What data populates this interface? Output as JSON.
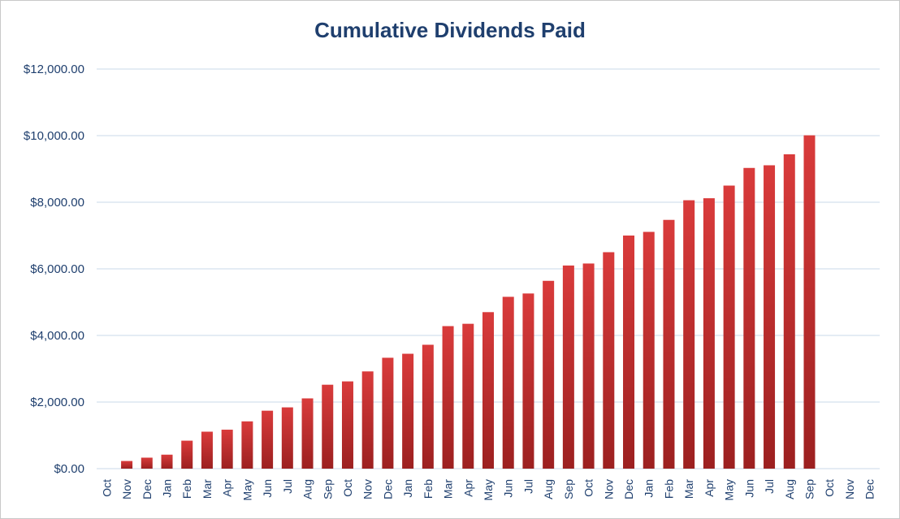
{
  "chart_data": {
    "type": "bar",
    "title": "Cumulative Dividends Paid",
    "xlabel": "",
    "ylabel": "",
    "ylim": [
      0,
      12000
    ],
    "yticks": [
      "$0.00",
      "$2,000.00",
      "$4,000.00",
      "$6,000.00",
      "$8,000.00",
      "$10,000.00",
      "$12,000.00"
    ],
    "grid": true,
    "legend": "none",
    "categories": [
      "Oct",
      "Nov",
      "Dec",
      "Jan",
      "Feb",
      "Mar",
      "Apr",
      "May",
      "Jun",
      "Jul",
      "Aug",
      "Sep",
      "Oct",
      "Nov",
      "Dec",
      "Jan",
      "Feb",
      "Mar",
      "Apr",
      "May",
      "Jun",
      "Jul",
      "Aug",
      "Sep",
      "Oct",
      "Nov",
      "Dec",
      "Jan",
      "Feb",
      "Mar",
      "Apr",
      "May",
      "Jun",
      "Jul",
      "Aug",
      "Sep",
      "Oct",
      "Nov",
      "Dec"
    ],
    "values": [
      0,
      230,
      330,
      420,
      840,
      1110,
      1170,
      1420,
      1740,
      1840,
      2110,
      2520,
      2620,
      2920,
      3330,
      3450,
      3720,
      4280,
      4350,
      4700,
      5160,
      5260,
      5640,
      6100,
      6160,
      6500,
      7000,
      7110,
      7470,
      8060,
      8120,
      8500,
      9030,
      9110,
      9440,
      10010,
      0,
      0,
      0
    ],
    "bar_color": "#cc2e2e",
    "grid_color": "#c9d9ea",
    "text_color": "#1f3f6e"
  }
}
